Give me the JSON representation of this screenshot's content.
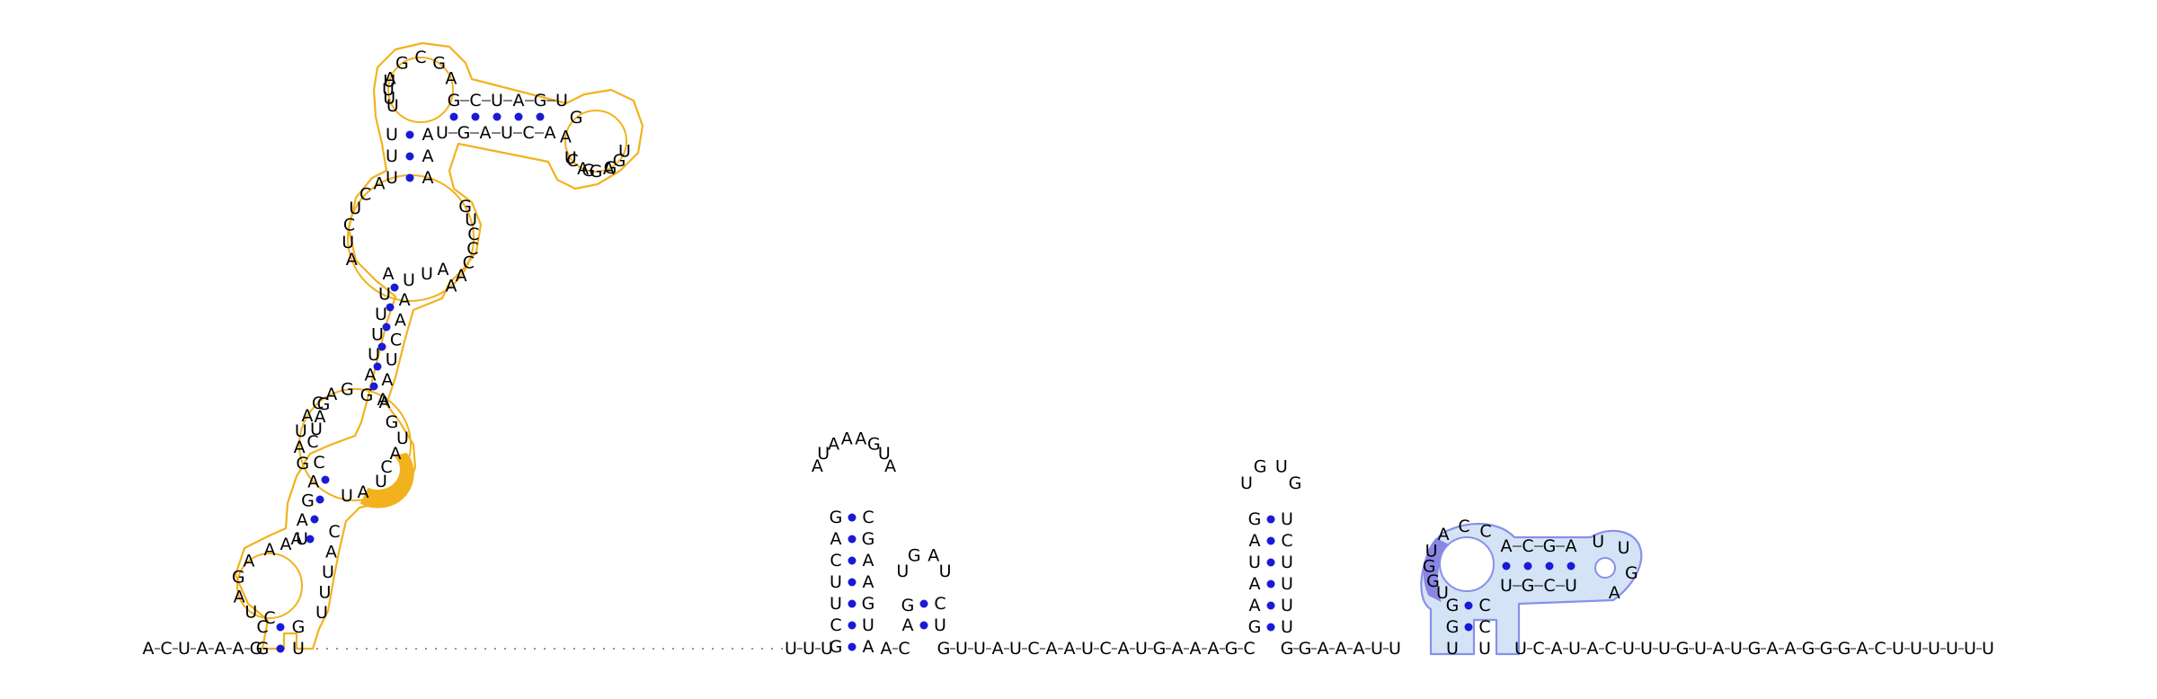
{
  "colors": {
    "orange_outline": "#f2b21e",
    "orange_fill": "#f2b21e",
    "blue_outline": "#8890e8",
    "blue_fill": "#d4e4f6",
    "blue_dark": "#8a86e4",
    "basepair_dot": "#1a1ad6"
  },
  "sequence": {
    "left_tail": "ACUAAAG",
    "right_tail": "UCAUACUUUGUAUGAAGGGACUUUUUU",
    "middle_a": "AAC",
    "middle_b": "GUUAUCAAUCAUGAAAGC",
    "middle_c": "GGAAAUU"
  },
  "hairpin_1": {
    "stem_5p": "GCUUCAG",
    "loop": "AUAAAGUA",
    "stem_3p": "CGAAGUA"
  },
  "hairpin_2": {
    "stem_5p": "GA",
    "loop": "UGAU",
    "stem_3p": "UC"
  },
  "hairpin_3": {
    "stem_5p": "GAUAAG",
    "loop": "UGUG",
    "stem_3p": "UCUUUU"
  },
  "blue_domain": {
    "stem_5p": "UGG",
    "loop_5p": "UGGU",
    "loop_top": "ACC",
    "inner_5p": "ACGA",
    "inner_loop": "UUGA",
    "inner_3p": "UGCU",
    "stem_3p": "CCU"
  },
  "orange_domain": {
    "note_pairs": "GU UA"
  }
}
